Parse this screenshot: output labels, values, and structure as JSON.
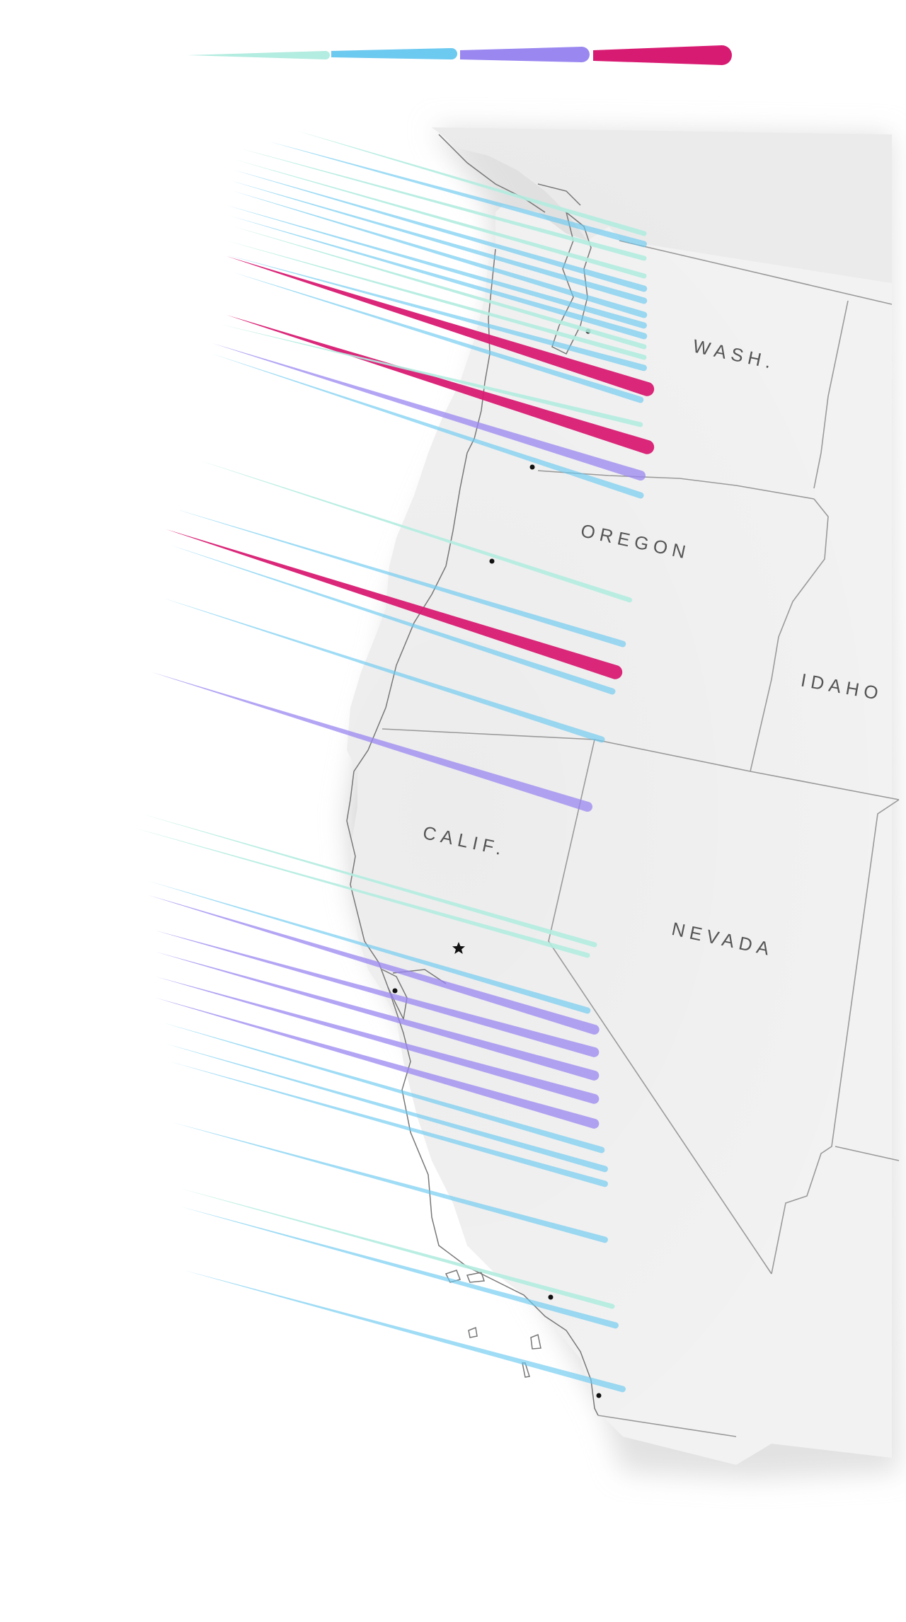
{
  "legend": {
    "category_colors": [
      "#b3ece0",
      "#6cc9f0",
      "#9b87f0",
      "#d81b72"
    ]
  },
  "map": {
    "state_labels": {
      "washington": "WASH.",
      "oregon": "OREGON",
      "idaho": "IDAHO",
      "california": "CALIF.",
      "nevada": "NEVADA"
    },
    "land_color": "#ececec",
    "border_color": "#9a9a9a",
    "coastline_color": "#777777",
    "city_marker": "dot",
    "capital_marker": "star"
  }
}
